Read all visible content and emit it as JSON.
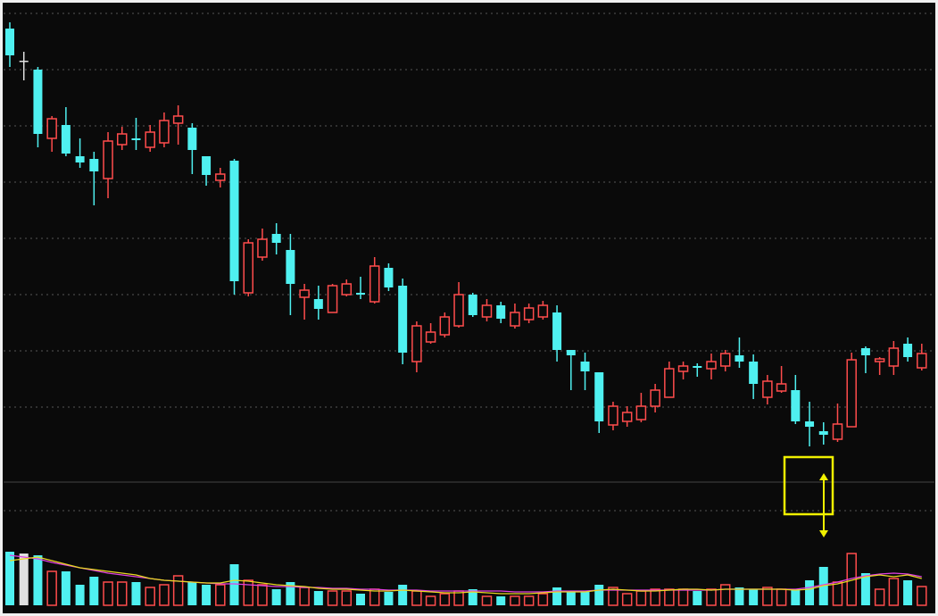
{
  "chart_data": {
    "type": "candlestick",
    "up_color": "#ff4c4c",
    "down_color": "#4ff0f0",
    "flat_color": "#e0e0e0",
    "ylim": [
      6,
      59.5
    ],
    "open": [
      56.8,
      53.2,
      52.2,
      44.5,
      46.0,
      42.5,
      42.2,
      40.0,
      43.8,
      44.5,
      43.5,
      44.0,
      46.2,
      45.7,
      42.5,
      39.8,
      42.0,
      27.2,
      31.2,
      33.8,
      32.0,
      26.7,
      26.5,
      25.0,
      27.0,
      27.2,
      26.2,
      30.0,
      28.0,
      19.5,
      21.7,
      22.5,
      23.5,
      27.0,
      24.5,
      25.8,
      23.5,
      24.2,
      24.5,
      25.0,
      20.8,
      19.5,
      18.3,
      12.4,
      12.8,
      13.0,
      14.5,
      15.5,
      18.4,
      19.0,
      18.7,
      19.0,
      20.2,
      19.5,
      15.5,
      16.2,
      16.3,
      12.8,
      11.7,
      10.8,
      12.2,
      21.0,
      19.5,
      19.0,
      21.5,
      18.8
    ],
    "high": [
      57.5,
      54.2,
      52.5,
      47.0,
      48.0,
      44.5,
      43.0,
      45.2,
      45.8,
      46.8,
      46.0,
      47.4,
      48.2,
      46.2,
      42.5,
      41.2,
      42.2,
      33.2,
      34.4,
      35.0,
      33.8,
      28.2,
      28.0,
      28.2,
      28.7,
      29.0,
      31.2,
      30.5,
      28.8,
      24.0,
      23.8,
      25.0,
      28.4,
      27.2,
      26.5,
      26.2,
      26.0,
      26.0,
      26.3,
      25.8,
      20.8,
      20.5,
      18.3,
      15.0,
      14.5,
      16.0,
      17.0,
      19.5,
      19.5,
      19.3,
      20.4,
      20.8,
      22.2,
      20.3,
      18.0,
      19.0,
      18.0,
      15.0,
      12.7,
      14.8,
      20.5,
      21.2,
      20.0,
      21.8,
      22.2,
      21.5
    ],
    "low": [
      52.5,
      51.0,
      43.5,
      43.0,
      42.5,
      41.2,
      37.0,
      37.8,
      43.2,
      43.2,
      43.0,
      43.5,
      43.8,
      40.5,
      39.2,
      39.0,
      27.0,
      26.8,
      30.8,
      31.5,
      24.7,
      24.2,
      24.2,
      25.0,
      26.8,
      26.5,
      26.0,
      27.4,
      19.2,
      18.3,
      21.5,
      22.2,
      23.3,
      24.5,
      24.0,
      23.8,
      23.2,
      23.8,
      24.2,
      19.5,
      16.3,
      16.3,
      11.5,
      11.8,
      12.2,
      12.7,
      13.8,
      15.5,
      17.5,
      17.8,
      17.5,
      18.4,
      18.8,
      15.3,
      14.7,
      16.0,
      12.5,
      10.0,
      10.2,
      10.5,
      12.2,
      18.2,
      18.0,
      18.0,
      19.5,
      18.5
    ],
    "close": [
      53.8,
      53.2,
      45.0,
      46.7,
      42.8,
      41.8,
      40.8,
      44.2,
      45.0,
      44.3,
      45.2,
      46.5,
      47.0,
      43.2,
      40.4,
      40.5,
      28.5,
      32.8,
      33.2,
      32.8,
      28.2,
      27.5,
      25.4,
      28.0,
      28.2,
      27.0,
      30.2,
      27.8,
      20.5,
      23.5,
      22.8,
      24.5,
      27.0,
      24.7,
      25.8,
      24.3,
      25.0,
      25.5,
      25.8,
      20.8,
      20.2,
      18.4,
      12.8,
      14.5,
      13.8,
      14.5,
      16.3,
      18.7,
      19.0,
      18.8,
      19.5,
      20.4,
      19.5,
      17.0,
      17.3,
      17.0,
      12.8,
      12.2,
      11.3,
      12.5,
      19.7,
      20.2,
      19.8,
      21.0,
      20.0,
      20.4
    ],
    "volume": {
      "ylim": [
        0,
        66
      ],
      "values": [
        60,
        58,
        56,
        38,
        38,
        23,
        32,
        26,
        26,
        26,
        20,
        23,
        33,
        26,
        23,
        23,
        46,
        28,
        23,
        18,
        26,
        20,
        16,
        16,
        16,
        13,
        18,
        15,
        23,
        16,
        10,
        13,
        16,
        18,
        10,
        10,
        10,
        10,
        13,
        20,
        16,
        16,
        23,
        20,
        13,
        16,
        18,
        18,
        18,
        16,
        18,
        23,
        20,
        18,
        20,
        18,
        18,
        28,
        43,
        26,
        58,
        36,
        18,
        30,
        28,
        21
      ],
      "averages": [
        {
          "color": "#e040e0",
          "values": [
            56,
            54,
            52,
            48,
            45,
            42,
            39,
            36,
            34,
            32,
            30,
            28,
            27,
            26,
            25,
            24,
            24,
            23,
            22,
            21,
            21,
            20,
            20,
            19,
            19,
            18,
            18,
            17,
            17,
            17,
            16,
            16,
            16,
            16,
            16,
            16,
            15,
            15,
            15,
            16,
            16,
            16,
            17,
            17,
            17,
            17,
            17,
            17,
            17,
            17,
            17,
            18,
            18,
            18,
            18,
            18,
            18,
            20,
            23,
            26,
            30,
            33,
            35,
            36,
            35,
            32
          ]
        },
        {
          "color": "#e8d820",
          "values": [
            50,
            52,
            54,
            50,
            46,
            42,
            40,
            38,
            36,
            34,
            30,
            28,
            27,
            26,
            25,
            25,
            28,
            27,
            25,
            23,
            22,
            21,
            19,
            18,
            18,
            17,
            16,
            16,
            17,
            16,
            15,
            14,
            14,
            15,
            14,
            13,
            13,
            13,
            14,
            15,
            15,
            15,
            17,
            18,
            17,
            16,
            16,
            17,
            18,
            18,
            17,
            18,
            18,
            18,
            18,
            18,
            17,
            18,
            22,
            24,
            28,
            32,
            34,
            32,
            34,
            30
          ]
        }
      ]
    }
  }
}
